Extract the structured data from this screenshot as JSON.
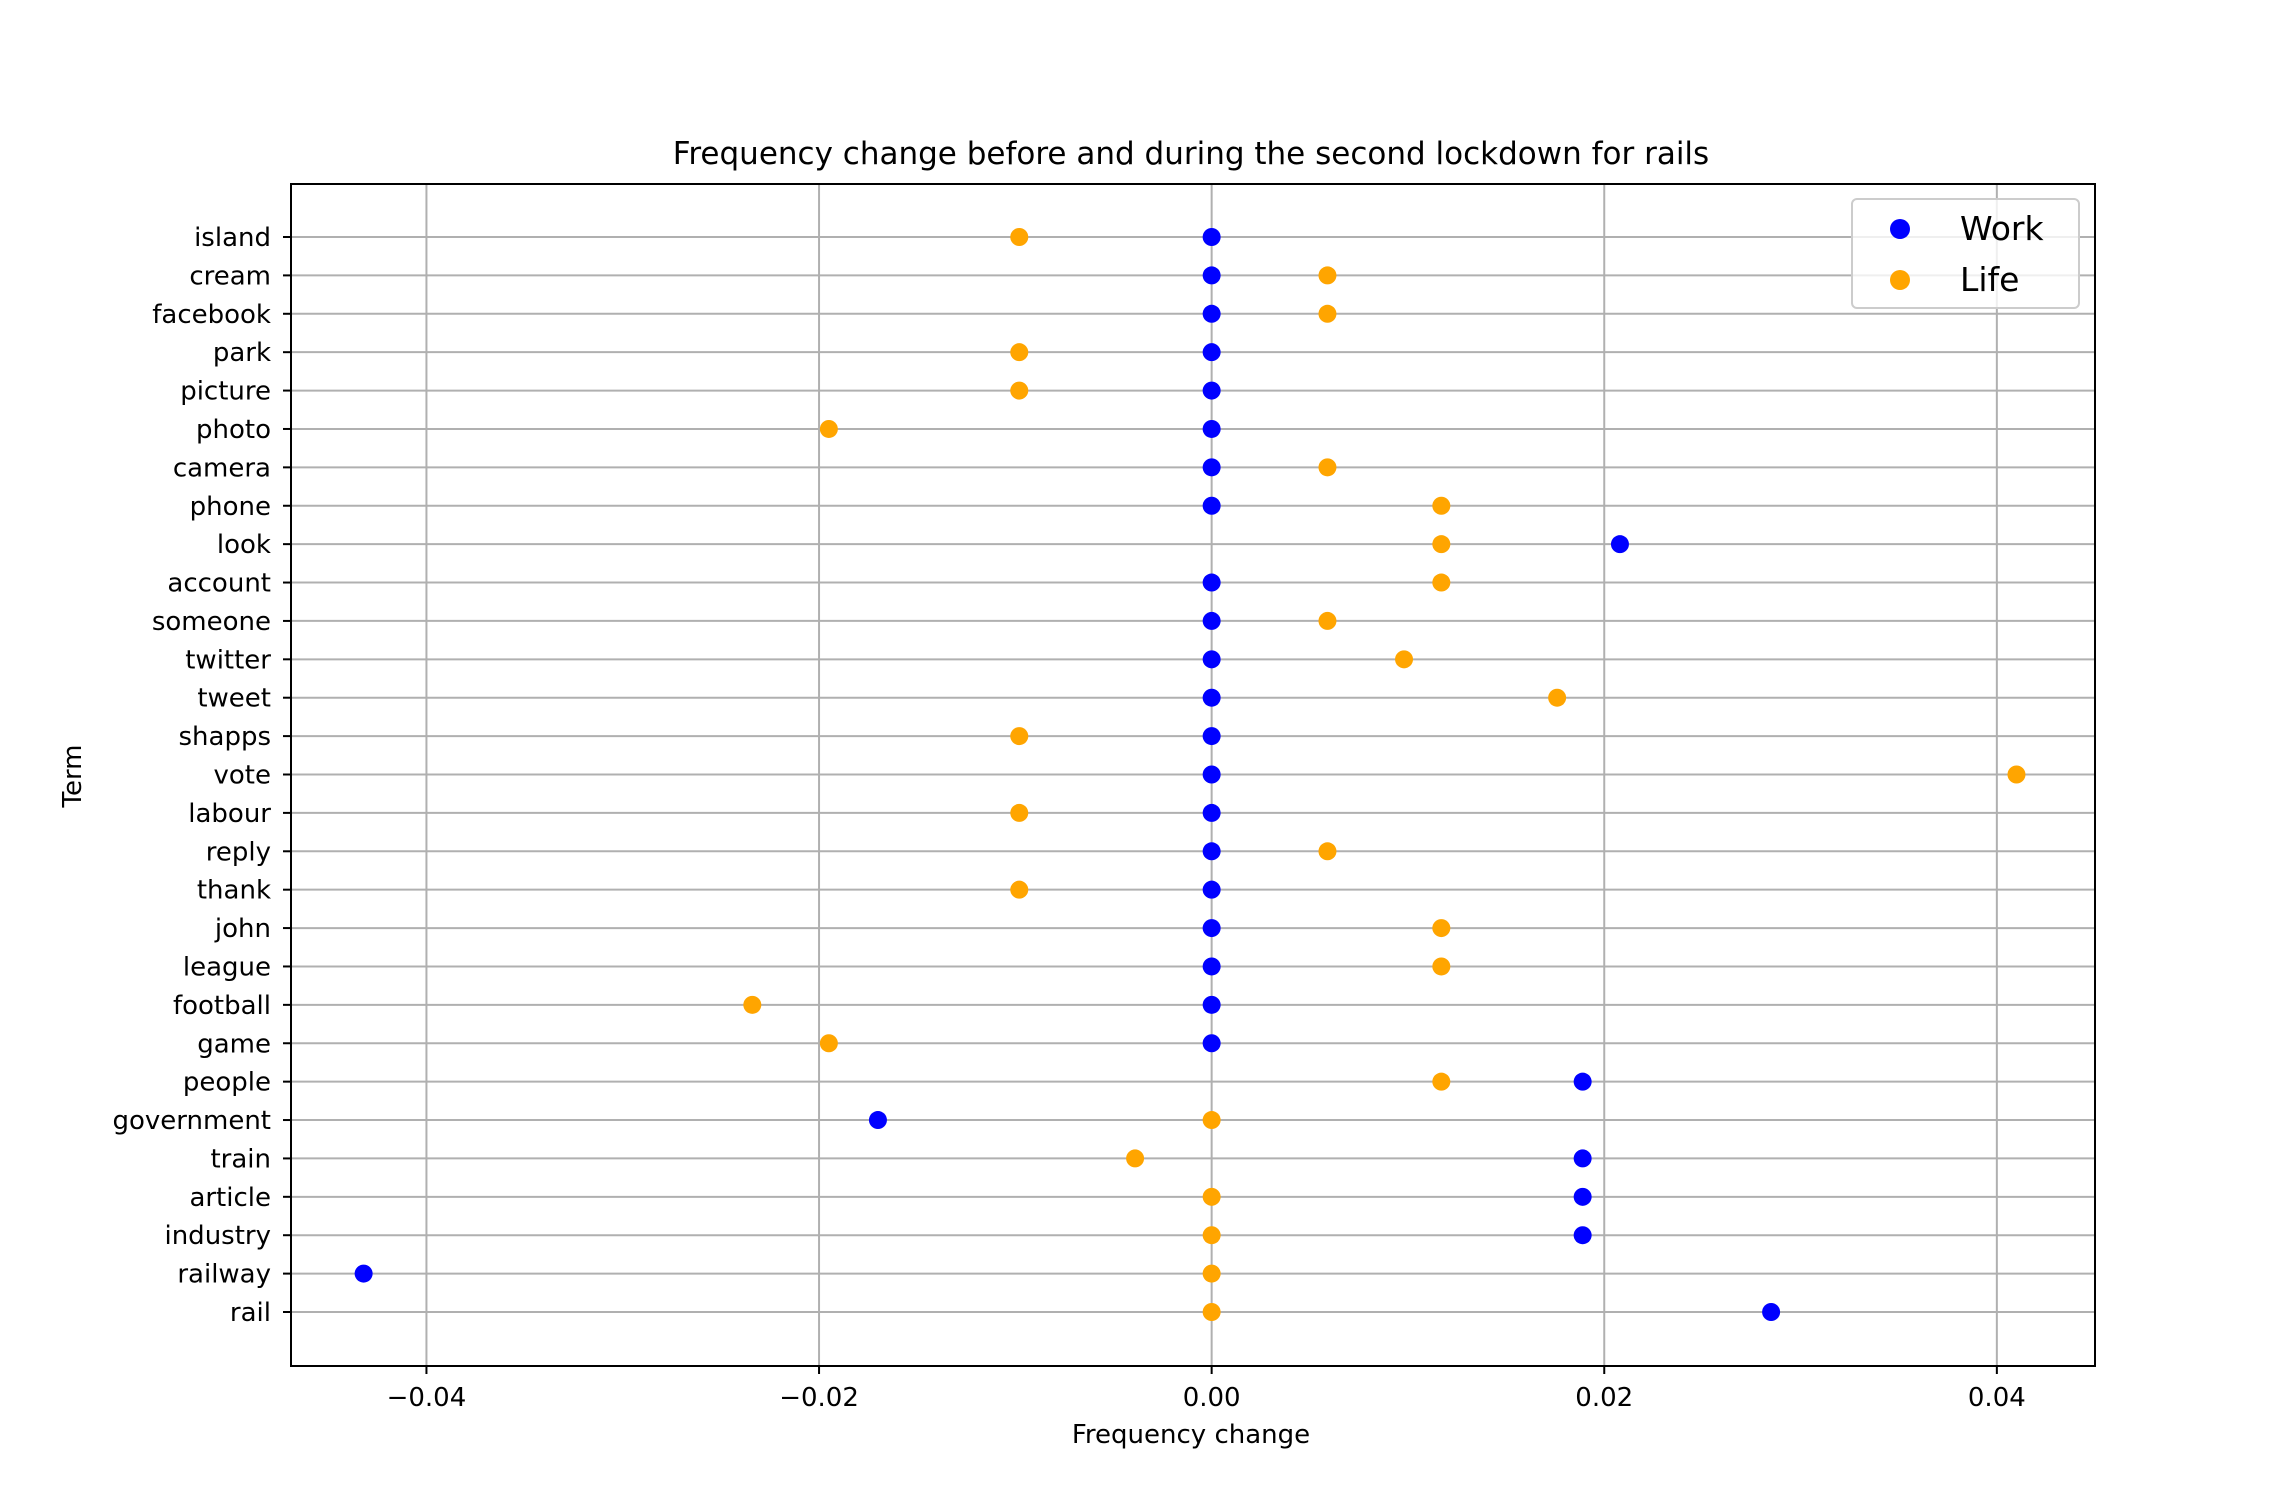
{
  "chart_data": {
    "type": "scatter",
    "title": "Frequency change before and during the second lockdown for rails",
    "xlabel": "Frequency change",
    "ylabel": "Term",
    "xlim": [
      -0.0469,
      0.045
    ],
    "xticks": [
      -0.04,
      -0.02,
      0.0,
      0.02,
      0.04
    ],
    "xtick_labels": [
      "−0.04",
      "−0.02",
      "0.00",
      "0.02",
      "0.04"
    ],
    "grid": true,
    "legend_position": "top-right",
    "categories": [
      "rail",
      "railway",
      "industry",
      "article",
      "train",
      "government",
      "people",
      "game",
      "football",
      "league",
      "john",
      "thank",
      "reply",
      "labour",
      "vote",
      "shapps",
      "tweet",
      "twitter",
      "someone",
      "account",
      "look",
      "phone",
      "camera",
      "photo",
      "picture",
      "park",
      "facebook",
      "cream",
      "island"
    ],
    "series": [
      {
        "name": "Work",
        "color": "#0000ff",
        "values": [
          0.0285,
          -0.0432,
          0.0189,
          0.0189,
          0.0189,
          -0.017,
          0.0189,
          0.0,
          0.0,
          0.0,
          0.0,
          0.0,
          0.0,
          0.0,
          0.0,
          0.0,
          0.0,
          0.0,
          0.0,
          0.0,
          0.0208,
          0.0,
          0.0,
          0.0,
          0.0,
          0.0,
          0.0,
          0.0,
          0.0
        ]
      },
      {
        "name": "Life",
        "color": "#ffa500",
        "values": [
          0.0,
          0.0,
          0.0,
          0.0,
          -0.0039,
          0.0,
          0.0117,
          -0.0195,
          -0.0234,
          0.0117,
          0.0117,
          -0.0098,
          0.0059,
          -0.0098,
          0.041,
          -0.0098,
          0.0176,
          0.0098,
          0.0059,
          0.0117,
          0.0117,
          0.0117,
          0.0059,
          -0.0195,
          -0.0098,
          -0.0098,
          0.0059,
          0.0059,
          -0.0098
        ]
      }
    ]
  }
}
